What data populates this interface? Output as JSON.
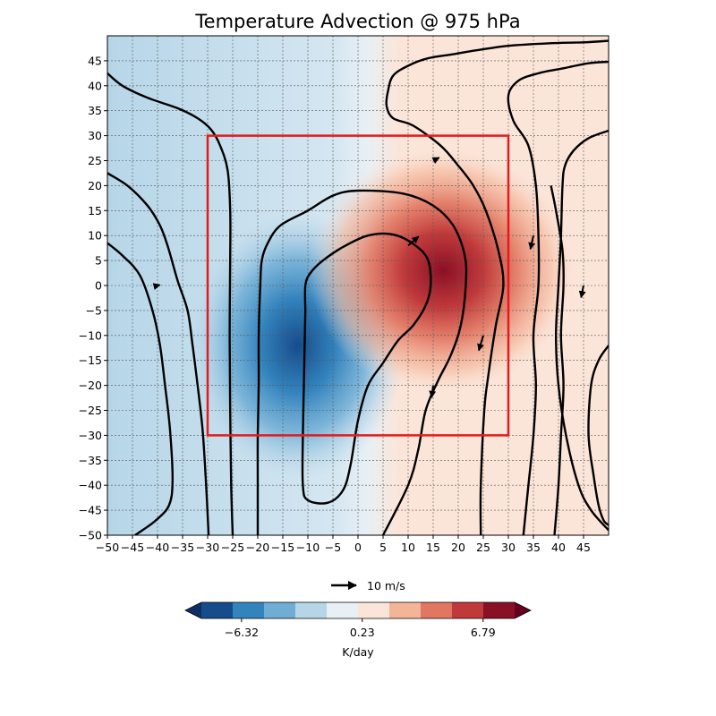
{
  "chart_data": {
    "type": "heatmap",
    "title": "Temperature Advection @ 975 hPa",
    "xlabel": "",
    "ylabel": "",
    "xlim": [
      -50,
      50
    ],
    "ylim": [
      -50,
      50
    ],
    "x_ticks": [
      -50,
      -45,
      -40,
      -35,
      -30,
      -25,
      -20,
      -15,
      -10,
      -5,
      0,
      5,
      10,
      15,
      20,
      25,
      30,
      35,
      40,
      45
    ],
    "y_ticks": [
      -50,
      -45,
      -40,
      -35,
      -30,
      -25,
      -20,
      -15,
      -10,
      -5,
      0,
      5,
      10,
      15,
      20,
      25,
      30,
      35,
      40,
      45
    ],
    "x_tick_labels": [
      "−50",
      "−45",
      "−40",
      "−35",
      "−30",
      "−25",
      "−20",
      "−15",
      "−10",
      "−5",
      "0",
      "5",
      "10",
      "15",
      "20",
      "25",
      "30",
      "35",
      "40",
      "45"
    ],
    "y_tick_labels": [
      "−50",
      "−45",
      "−40",
      "−35",
      "−30",
      "−25",
      "−20",
      "−15",
      "−10",
      "−5",
      "0",
      "5",
      "10",
      "15",
      "20",
      "25",
      "30",
      "35",
      "40",
      "45"
    ],
    "grid": true,
    "field": {
      "description": "K/day",
      "cool_center": [
        -12,
        -12
      ],
      "warm_center": [
        17,
        3
      ]
    },
    "highlight_box": {
      "x": [
        -30,
        30
      ],
      "y": [
        -30,
        30
      ],
      "color": "#e41a1c"
    },
    "contours": [
      [
        [
          -50,
          8.5
        ],
        [
          -47,
          6
        ],
        [
          -43.5,
          2
        ],
        [
          -41,
          -5
        ],
        [
          -39.5,
          -12
        ],
        [
          -38.5,
          -20
        ],
        [
          -37.5,
          -29
        ],
        [
          -37,
          -39
        ],
        [
          -37.7,
          -44
        ],
        [
          -40.3,
          -47
        ],
        [
          -43,
          -49
        ],
        [
          -44.5,
          -50
        ]
      ],
      [
        [
          -50,
          22.5
        ],
        [
          -46,
          20
        ],
        [
          -42,
          16
        ],
        [
          -39.5,
          12
        ],
        [
          -38,
          8
        ],
        [
          -36,
          1
        ],
        [
          -34,
          -5
        ],
        [
          -33,
          -12
        ],
        [
          -32,
          -20
        ],
        [
          -31,
          -29
        ],
        [
          -30.3,
          -40
        ],
        [
          -29.8,
          -50
        ]
      ],
      [
        [
          -50,
          42.5
        ],
        [
          -47,
          40
        ],
        [
          -42,
          37.6
        ],
        [
          -36,
          35.5
        ],
        [
          -32,
          33.5
        ],
        [
          -29.3,
          31.2
        ],
        [
          -27.5,
          28
        ],
        [
          -26,
          23
        ],
        [
          -25.5,
          15
        ],
        [
          -25.5,
          5
        ],
        [
          -25.6,
          -10
        ],
        [
          -25.5,
          -25
        ],
        [
          -25.3,
          -40
        ],
        [
          -25,
          -50
        ]
      ],
      [
        [
          5,
          -50
        ],
        [
          10,
          -40
        ],
        [
          12,
          -33
        ],
        [
          13.5,
          -25
        ],
        [
          16,
          -19
        ],
        [
          18.5,
          -14
        ],
        [
          20.5,
          -8
        ],
        [
          21.5,
          0
        ],
        [
          21.3,
          6
        ],
        [
          19,
          12
        ],
        [
          15,
          16
        ],
        [
          9,
          18.4
        ],
        [
          0,
          19
        ],
        [
          -5,
          18
        ],
        [
          -10,
          15
        ],
        [
          -15.5,
          12
        ],
        [
          -18,
          8.5
        ],
        [
          -19.2,
          5
        ],
        [
          -19.5,
          0
        ],
        [
          -19.8,
          -10
        ],
        [
          -19.8,
          -20
        ],
        [
          -20,
          -30
        ],
        [
          -20,
          -40
        ],
        [
          -20,
          -50
        ]
      ],
      [
        [
          -10.5,
          -5
        ],
        [
          -10.5,
          0
        ],
        [
          -9.5,
          2.5
        ],
        [
          -7,
          5
        ],
        [
          -3,
          7.7
        ],
        [
          2,
          10
        ],
        [
          7,
          10.2
        ],
        [
          11.5,
          8
        ],
        [
          14,
          5
        ],
        [
          14.5,
          0
        ],
        [
          13.5,
          -4
        ],
        [
          11,
          -8
        ],
        [
          8,
          -11
        ],
        [
          5,
          -15.5
        ],
        [
          2,
          -20
        ],
        [
          0,
          -27
        ],
        [
          -1.5,
          -36
        ],
        [
          -3,
          -41
        ],
        [
          -6,
          -43.5
        ],
        [
          -10,
          -43
        ],
        [
          -11,
          -40
        ],
        [
          -11,
          -30
        ],
        [
          -10.8,
          -20
        ],
        [
          -10.6,
          -10
        ],
        [
          -10.5,
          -5
        ]
      ],
      [
        [
          24.5,
          -50
        ],
        [
          24.5,
          -40
        ],
        [
          25.2,
          -25
        ],
        [
          26,
          -18
        ],
        [
          27.5,
          -8
        ],
        [
          29,
          0
        ],
        [
          28,
          7
        ],
        [
          25.5,
          15
        ],
        [
          23,
          20
        ],
        [
          20,
          24
        ],
        [
          16.5,
          28
        ],
        [
          11,
          32
        ],
        [
          7,
          33.5
        ],
        [
          5.7,
          36
        ],
        [
          6,
          39
        ],
        [
          7,
          42
        ],
        [
          10,
          44
        ],
        [
          14,
          45.5
        ],
        [
          19,
          46.3
        ],
        [
          23,
          47
        ],
        [
          30,
          48
        ],
        [
          38,
          48.5
        ],
        [
          45,
          48.7
        ],
        [
          50,
          49
        ]
      ],
      [
        [
          33,
          -50
        ],
        [
          34,
          -40
        ],
        [
          35,
          -30
        ],
        [
          35.5,
          -20
        ],
        [
          35,
          -10
        ],
        [
          36,
          0
        ],
        [
          36,
          10
        ],
        [
          35.5,
          20
        ],
        [
          34,
          28
        ],
        [
          31,
          33
        ],
        [
          30,
          38
        ],
        [
          32,
          41
        ],
        [
          36,
          42.5
        ],
        [
          41,
          43.5
        ],
        [
          46,
          44.5
        ],
        [
          50,
          44.8
        ]
      ],
      [
        [
          39.2,
          -50
        ],
        [
          40,
          -40
        ],
        [
          40.5,
          -30
        ],
        [
          41,
          -20
        ],
        [
          40.5,
          -10
        ],
        [
          41,
          0
        ],
        [
          40.8,
          7
        ],
        [
          39.5,
          15
        ],
        [
          38.5,
          20
        ]
      ],
      [
        [
          50,
          31
        ],
        [
          46,
          29.5
        ],
        [
          43,
          27
        ],
        [
          41.3,
          24
        ],
        [
          40.8,
          20
        ],
        [
          40.5,
          10
        ],
        [
          40,
          0
        ],
        [
          39.5,
          -10
        ],
        [
          40,
          -20
        ],
        [
          41.5,
          -30
        ],
        [
          44,
          -40
        ],
        [
          46.5,
          -45
        ],
        [
          50,
          -49
        ]
      ],
      [
        [
          50,
          -12
        ],
        [
          48,
          -15
        ],
        [
          46.5,
          -20
        ],
        [
          46,
          -30
        ],
        [
          47,
          -38
        ],
        [
          48,
          -44
        ],
        [
          49,
          -47
        ],
        [
          50,
          -48
        ]
      ]
    ],
    "wind_vectors": [
      {
        "x": -40,
        "y": 0,
        "u": 0.8,
        "v": 0.2
      },
      {
        "x": 10,
        "y": 8,
        "u": 3.5,
        "v": 3
      },
      {
        "x": 15,
        "y": -20,
        "u": -0.5,
        "v": -4
      },
      {
        "x": 25,
        "y": -10,
        "u": -1.5,
        "v": -5
      },
      {
        "x": 35,
        "y": 10,
        "u": -1,
        "v": -4.5
      },
      {
        "x": 45,
        "y": 0,
        "u": -0.8,
        "v": -4
      },
      {
        "x": 15,
        "y": 25,
        "u": 2,
        "v": 1
      }
    ],
    "quiver_key": {
      "label": "10 m/s",
      "value": 10
    },
    "colorbar": {
      "label": "K/day",
      "tick_labels": [
        "−6.32",
        "0.23",
        "6.79"
      ],
      "tick_values": [
        -6.32,
        0.23,
        6.79
      ],
      "colors": [
        "#164c8b",
        "#3383bd",
        "#6fadd5",
        "#b6d6e8",
        "#e8f0f5",
        "#fbe5d9",
        "#f4b497",
        "#e17761",
        "#c03a3b",
        "#891025"
      ],
      "under_color": "#0e2f63",
      "over_color": "#67001f",
      "extend": "both"
    }
  }
}
